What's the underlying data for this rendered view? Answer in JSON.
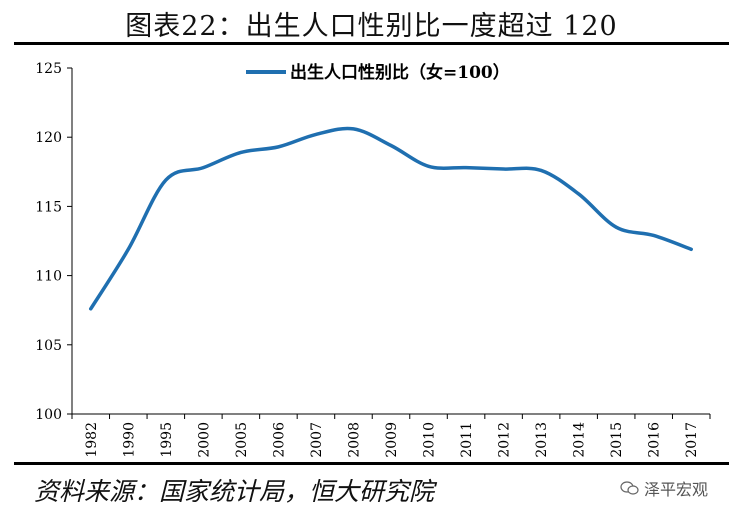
{
  "header": {
    "title": "图表22：出生人口性别比一度超过 120"
  },
  "footer": {
    "source": "资料来源：国家统计局，恒大研究院",
    "watermark": "泽平宏观"
  },
  "colors": {
    "line": "#1f6fb0",
    "axis": "#000000"
  },
  "icons": {
    "watermark": "wechat-icon"
  },
  "chart_data": {
    "type": "line",
    "title": "",
    "xlabel": "",
    "ylabel": "",
    "categories": [
      "1982",
      "1990",
      "1995",
      "2000",
      "2005",
      "2006",
      "2007",
      "2008",
      "2009",
      "2010",
      "2011",
      "2012",
      "2013",
      "2014",
      "2015",
      "2016",
      "2017"
    ],
    "ylim": [
      100,
      125
    ],
    "yticks": [
      100,
      105,
      110,
      115,
      120,
      125
    ],
    "grid": false,
    "legend": "top-center",
    "series": [
      {
        "name": "出生人口性别比（女=100）",
        "values": [
          107.6,
          111.9,
          116.9,
          117.8,
          118.9,
          119.3,
          120.2,
          120.6,
          119.4,
          117.9,
          117.8,
          117.7,
          117.6,
          115.9,
          113.5,
          112.9,
          111.9
        ]
      }
    ]
  }
}
